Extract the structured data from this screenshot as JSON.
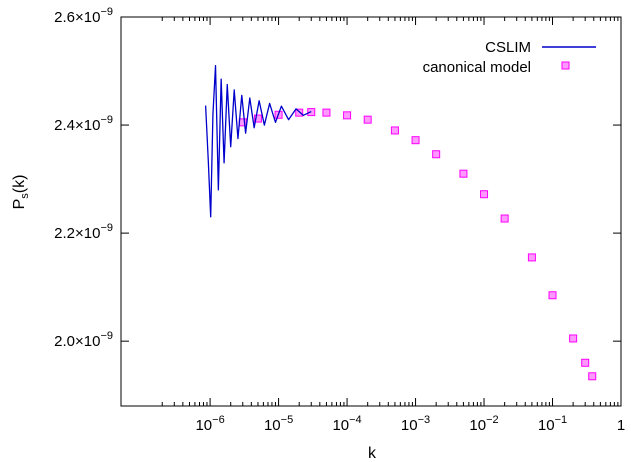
{
  "chart_data": {
    "type": "line",
    "xlabel": "k",
    "ylabel": "P",
    "ylabel_sub": "s",
    "ylabel_suffix": "(k)",
    "xscale": "log",
    "xlim": [
      5e-08,
      1.0
    ],
    "ylim": [
      1.88e-09,
      2.6e-09
    ],
    "x_ticks": [
      {
        "value": 1e-06,
        "base": "10",
        "exp": "−6"
      },
      {
        "value": 1e-05,
        "base": "10",
        "exp": "−5"
      },
      {
        "value": 0.0001,
        "base": "10",
        "exp": "−4"
      },
      {
        "value": 0.001,
        "base": "10",
        "exp": "−3"
      },
      {
        "value": 0.01,
        "base": "10",
        "exp": "−2"
      },
      {
        "value": 0.1,
        "base": "10",
        "exp": "−1"
      },
      {
        "value": 1,
        "base": "1",
        "exp": ""
      }
    ],
    "y_ticks": [
      {
        "value": 2e-09,
        "mant": "2.0×10",
        "exp": "−9"
      },
      {
        "value": 2.2e-09,
        "mant": "2.2×10",
        "exp": "−9"
      },
      {
        "value": 2.4e-09,
        "mant": "2.4×10",
        "exp": "−9"
      },
      {
        "value": 2.6e-09,
        "mant": "2.6×10",
        "exp": "−9"
      }
    ],
    "grid": false,
    "legend_position": "top-right",
    "series": [
      {
        "name": "CSLIM",
        "style": "line",
        "color": "#0000cc",
        "x": [
          8.6e-07,
          9.4e-07,
          1.02e-06,
          1.1e-06,
          1.2e-06,
          1.32e-06,
          1.45e-06,
          1.6e-06,
          1.78e-06,
          2e-06,
          2.25e-06,
          2.55e-06,
          2.9e-06,
          3.3e-06,
          3.8e-06,
          4.4e-06,
          5.2e-06,
          6.2e-06,
          7.4e-06,
          9e-06,
          1.1e-05,
          1.4e-05,
          1.8e-05,
          2.3e-05,
          3e-05
        ],
        "y": [
          2.436e-09,
          2.335e-09,
          2.23e-09,
          2.42e-09,
          2.51e-09,
          2.28e-09,
          2.485e-09,
          2.33e-09,
          2.475e-09,
          2.36e-09,
          2.465e-09,
          2.375e-09,
          2.455e-09,
          2.385e-09,
          2.45e-09,
          2.395e-09,
          2.445e-09,
          2.4e-09,
          2.44e-09,
          2.405e-09,
          2.435e-09,
          2.41e-09,
          2.43e-09,
          2.418e-09,
          2.425e-09
        ]
      },
      {
        "name": "canonical model",
        "style": "points",
        "color": "#ff00ff",
        "x": [
          3e-06,
          5e-06,
          1e-05,
          2e-05,
          3e-05,
          5e-05,
          0.0001,
          0.0002,
          0.0005,
          0.001,
          0.002,
          0.005,
          0.01,
          0.02,
          0.05,
          0.1,
          0.2,
          0.3,
          0.38
        ],
        "y": [
          2.405e-09,
          2.412e-09,
          2.419e-09,
          2.423e-09,
          2.424e-09,
          2.423e-09,
          2.418e-09,
          2.41e-09,
          2.39e-09,
          2.372e-09,
          2.346e-09,
          2.31e-09,
          2.272e-09,
          2.227e-09,
          2.155e-09,
          2.085e-09,
          2.005e-09,
          1.96e-09,
          1.935e-09
        ]
      }
    ]
  }
}
